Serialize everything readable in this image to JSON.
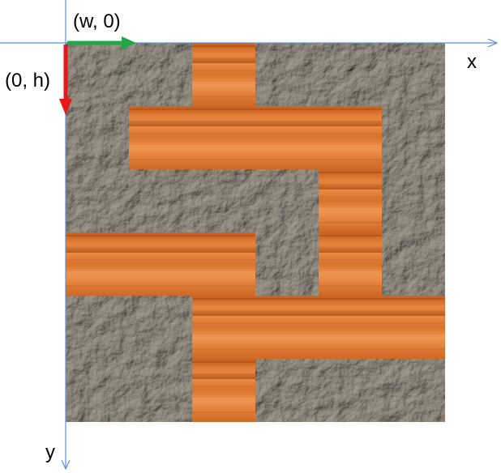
{
  "labels": {
    "w_vector": "(w, 0)",
    "h_vector": "(0, h)",
    "x_axis": "x",
    "y_axis": "y"
  },
  "grid": {
    "cols": 6,
    "rows": 6,
    "wood_cells": [
      [
        2,
        0
      ],
      [
        1,
        1
      ],
      [
        2,
        1
      ],
      [
        3,
        1
      ],
      [
        4,
        1
      ],
      [
        4,
        2
      ],
      [
        0,
        3
      ],
      [
        1,
        3
      ],
      [
        2,
        3
      ],
      [
        4,
        3
      ],
      [
        2,
        4
      ],
      [
        3,
        4
      ],
      [
        4,
        4
      ],
      [
        5,
        4
      ],
      [
        2,
        5
      ]
    ]
  },
  "colors": {
    "stone": "#8a8376",
    "wood": "#e07d35",
    "w_arrow": "#22a64a",
    "h_arrow": "#e8161b",
    "axis": "#5b8fd6"
  }
}
